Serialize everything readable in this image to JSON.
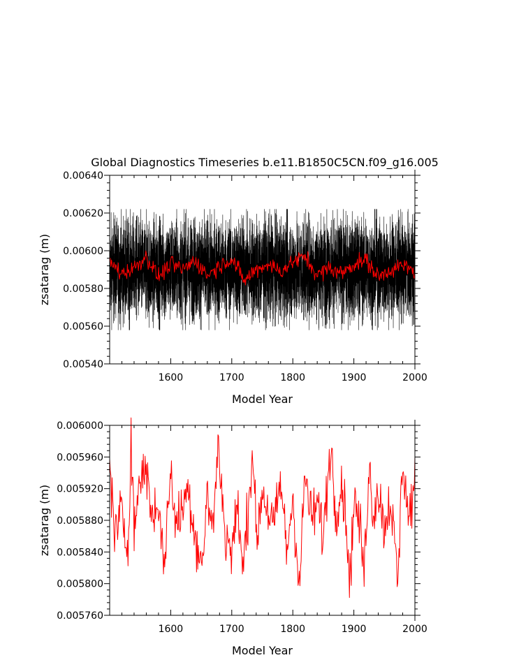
{
  "title": "Global Diagnostics Timeseries b.e11.B1850C5CN.f09_g16.005",
  "chart_data": [
    {
      "type": "line",
      "xlabel": "Model Year",
      "ylabel": "zsatarag (m)",
      "xlim": [
        1500,
        2000
      ],
      "ylim": [
        0.0054,
        0.0064
      ],
      "xticks": [
        1600,
        1700,
        1800,
        1900,
        2000
      ],
      "xtick_labels": [
        "1600",
        "1700",
        "1800",
        "1900",
        "2000"
      ],
      "yticks": [
        0.0054,
        0.0056,
        0.0058,
        0.006,
        0.0062,
        0.0064
      ],
      "ytick_labels": [
        "0.00540",
        "0.00560",
        "0.00580",
        "0.00600",
        "0.00620",
        "0.00640"
      ],
      "grid": false,
      "series": [
        {
          "color": "#000000",
          "resolution": "monthly",
          "mean": 0.0059,
          "envelope_min": 0.00558,
          "envelope_max": 0.00622,
          "sampled_values": [
            0.00588,
            0.00612,
            0.00572,
            0.00605,
            0.00581,
            0.00618,
            0.00566,
            0.00598,
            0.00609,
            0.00575,
            0.00592,
            0.00614,
            0.00569,
            0.00601,
            0.00585,
            0.0062,
            0.00563,
            0.00596,
            0.00611,
            0.00578
          ]
        },
        {
          "color": "#ff0000",
          "resolution": "annual",
          "values": [
            0.00594,
            0.00588,
            0.00591,
            0.00597,
            0.00586,
            0.00593,
            0.0059,
            0.00595,
            0.00587,
            0.00592,
            0.00596,
            0.00584,
            0.0059,
            0.00593,
            0.00589,
            0.00594,
            0.00597,
            0.00587,
            0.00591,
            0.00588,
            0.00593,
            0.00595,
            0.00586,
            0.0059,
            0.00592,
            0.00589
          ]
        }
      ]
    },
    {
      "type": "line",
      "xlabel": "Model Year",
      "ylabel": "zsatarag (m)",
      "xlim": [
        1500,
        2000
      ],
      "ylim": [
        0.00576,
        0.006
      ],
      "xticks": [
        1600,
        1700,
        1800,
        1900,
        2000
      ],
      "xtick_labels": [
        "1600",
        "1700",
        "1800",
        "1900",
        "2000"
      ],
      "yticks": [
        0.00576,
        0.0058,
        0.00584,
        0.00588,
        0.00592,
        0.00596,
        0.006
      ],
      "ytick_labels": [
        "0.005760",
        "0.005800",
        "0.005840",
        "0.005880",
        "0.005920",
        "0.005960",
        "0.006000"
      ],
      "grid": false,
      "series": [
        {
          "color": "#ff0000",
          "resolution": "annual",
          "x": [
            1500,
            1510,
            1520,
            1530,
            1535,
            1540,
            1550,
            1560,
            1570,
            1580,
            1588,
            1600,
            1610,
            1620,
            1630,
            1640,
            1652,
            1660,
            1670,
            1677,
            1690,
            1700,
            1710,
            1718,
            1725,
            1735,
            1740,
            1750,
            1760,
            1770,
            1780,
            1790,
            1800,
            1811,
            1820,
            1830,
            1840,
            1850,
            1862,
            1870,
            1880,
            1890,
            1893,
            1900,
            1910,
            1917,
            1925,
            1930,
            1940,
            1950,
            1960,
            1972,
            1980,
            1990,
            2000
          ],
          "values": [
            0.00594,
            0.00586,
            0.00589,
            0.00584,
            0.005995,
            0.00587,
            0.00593,
            0.00595,
            0.00588,
            0.00591,
            0.005818,
            0.00594,
            0.00587,
            0.0059,
            0.00592,
            0.00586,
            0.005825,
            0.00591,
            0.00587,
            0.005978,
            0.00586,
            0.00584,
            0.0059,
            0.005812,
            0.00588,
            0.005975,
            0.00585,
            0.00592,
            0.00589,
            0.00587,
            0.00593,
            0.00584,
            0.00591,
            0.005795,
            0.00594,
            0.00588,
            0.0059,
            0.00586,
            0.00598,
            0.00589,
            0.00593,
            0.00586,
            0.005788,
            0.00591,
            0.00587,
            0.005813,
            0.00596,
            0.00589,
            0.00592,
            0.00587,
            0.00591,
            0.005798,
            0.00596,
            0.00588,
            0.00593
          ]
        }
      ]
    }
  ]
}
